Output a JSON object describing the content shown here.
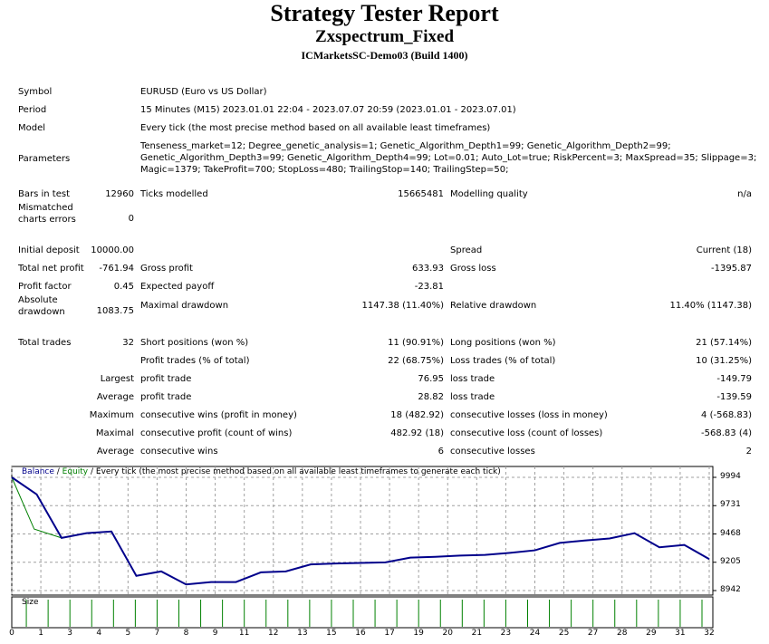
{
  "header": {
    "title": "Strategy Tester Report",
    "expert": "Zxspectrum_Fixed",
    "server": "ICMarketsSC-Demo03 (Build 1400)"
  },
  "info": [
    {
      "label": "Symbol",
      "value": "EURUSD (Euro vs US Dollar)"
    },
    {
      "label": "Period",
      "value": "15 Minutes (M15) 2023.01.01 22:04 - 2023.07.07 20:59 (2023.01.01 - 2023.07.01)"
    },
    {
      "label": "Model",
      "value": "Every tick (the most precise method based on all available least timeframes)"
    }
  ],
  "parameters": {
    "label": "Parameters",
    "lines": [
      "Tenseness_market=12; Degree_genetic_analysis=1; Genetic_Algorithm_Depth1=99; Genetic_Algorithm_Depth2=99;",
      "Genetic_Algorithm_Depth3=99; Genetic_Algorithm_Depth4=99; Lot=0.01; Auto_Lot=true; RiskPercent=3; MaxSpread=35; Slippage=3;",
      "Magic=1379; TakeProfit=700; StopLoss=480; TrailingStop=140; TrailingStep=50;"
    ]
  },
  "rows": [
    [
      "Bars in test",
      "12960",
      "Ticks modelled",
      "15665481",
      "Modelling quality",
      "n/a"
    ],
    [
      "Mismatched\ncharts errors",
      "0",
      "",
      "",
      "",
      ""
    ],
    [
      "Initial deposit",
      "10000.00",
      "",
      "",
      "Spread",
      "Current (18)"
    ],
    [
      "Total net profit",
      "-761.94",
      "Gross profit",
      "633.93",
      "Gross loss",
      "-1395.87"
    ],
    [
      "Profit factor",
      "0.45",
      "Expected payoff",
      "-23.81",
      "",
      ""
    ],
    [
      "Absolute\ndrawdown",
      "1083.75",
      "Maximal drawdown",
      "1147.38 (11.40%)",
      "Relative drawdown",
      "11.40% (1147.38)"
    ],
    [
      "Total trades",
      "32",
      "Short positions (won %)",
      "11 (90.91%)",
      "Long positions (won %)",
      "21 (57.14%)"
    ],
    [
      "",
      "",
      "Profit trades (% of total)",
      "22 (68.75%)",
      "Loss trades (% of total)",
      "10 (31.25%)"
    ],
    [
      "",
      "Largest",
      "profit trade",
      "76.95",
      "loss trade",
      "-149.79"
    ],
    [
      "",
      "Average",
      "profit trade",
      "28.82",
      "loss trade",
      "-139.59"
    ],
    [
      "",
      "Maximum",
      "consecutive wins (profit in money)",
      "18 (482.92)",
      "consecutive losses (loss in money)",
      "4 (-568.83)"
    ],
    [
      "",
      "Maximal",
      "consecutive profit (count of wins)",
      "482.92 (18)",
      "consecutive loss (count of losses)",
      "-568.83 (4)"
    ],
    [
      "",
      "Average",
      "consecutive wins",
      "6",
      "consecutive losses",
      "2"
    ]
  ],
  "chart_data": {
    "type": "line",
    "legend": {
      "balance": "Balance",
      "sep1": " / ",
      "equity": "Equity",
      "rest": " / Every tick (the most precise method based on all available least timeframes to generate each tick)"
    },
    "size_label": "Size",
    "ylim": [
      8942,
      9994
    ],
    "yticks": [
      "9994",
      "9731",
      "9468",
      "9205",
      "8942"
    ],
    "xticks": [
      "0",
      "1",
      "3",
      "4",
      "5",
      "7",
      "8",
      "9",
      "11",
      "12",
      "13",
      "15",
      "16",
      "17",
      "19",
      "20",
      "21",
      "23",
      "24",
      "25",
      "27",
      "28",
      "29",
      "31",
      "32"
    ],
    "balance": [
      9994,
      9836,
      9431,
      9475,
      9491,
      9079,
      9120,
      8999,
      9021,
      9021,
      9111,
      9120,
      9185,
      9193,
      9199,
      9204,
      9248,
      9256,
      9267,
      9273,
      9292,
      9316,
      9385,
      9407,
      9426,
      9475,
      9344,
      9366,
      9234
    ],
    "equity": [
      [
        0,
        9994
      ],
      [
        0.9,
        9513
      ],
      [
        2,
        9431
      ]
    ],
    "trades": 32,
    "colors": {
      "balance": "#00008b",
      "equity": "#008000",
      "size": "#008000",
      "grid": "#a0a0a0"
    }
  }
}
